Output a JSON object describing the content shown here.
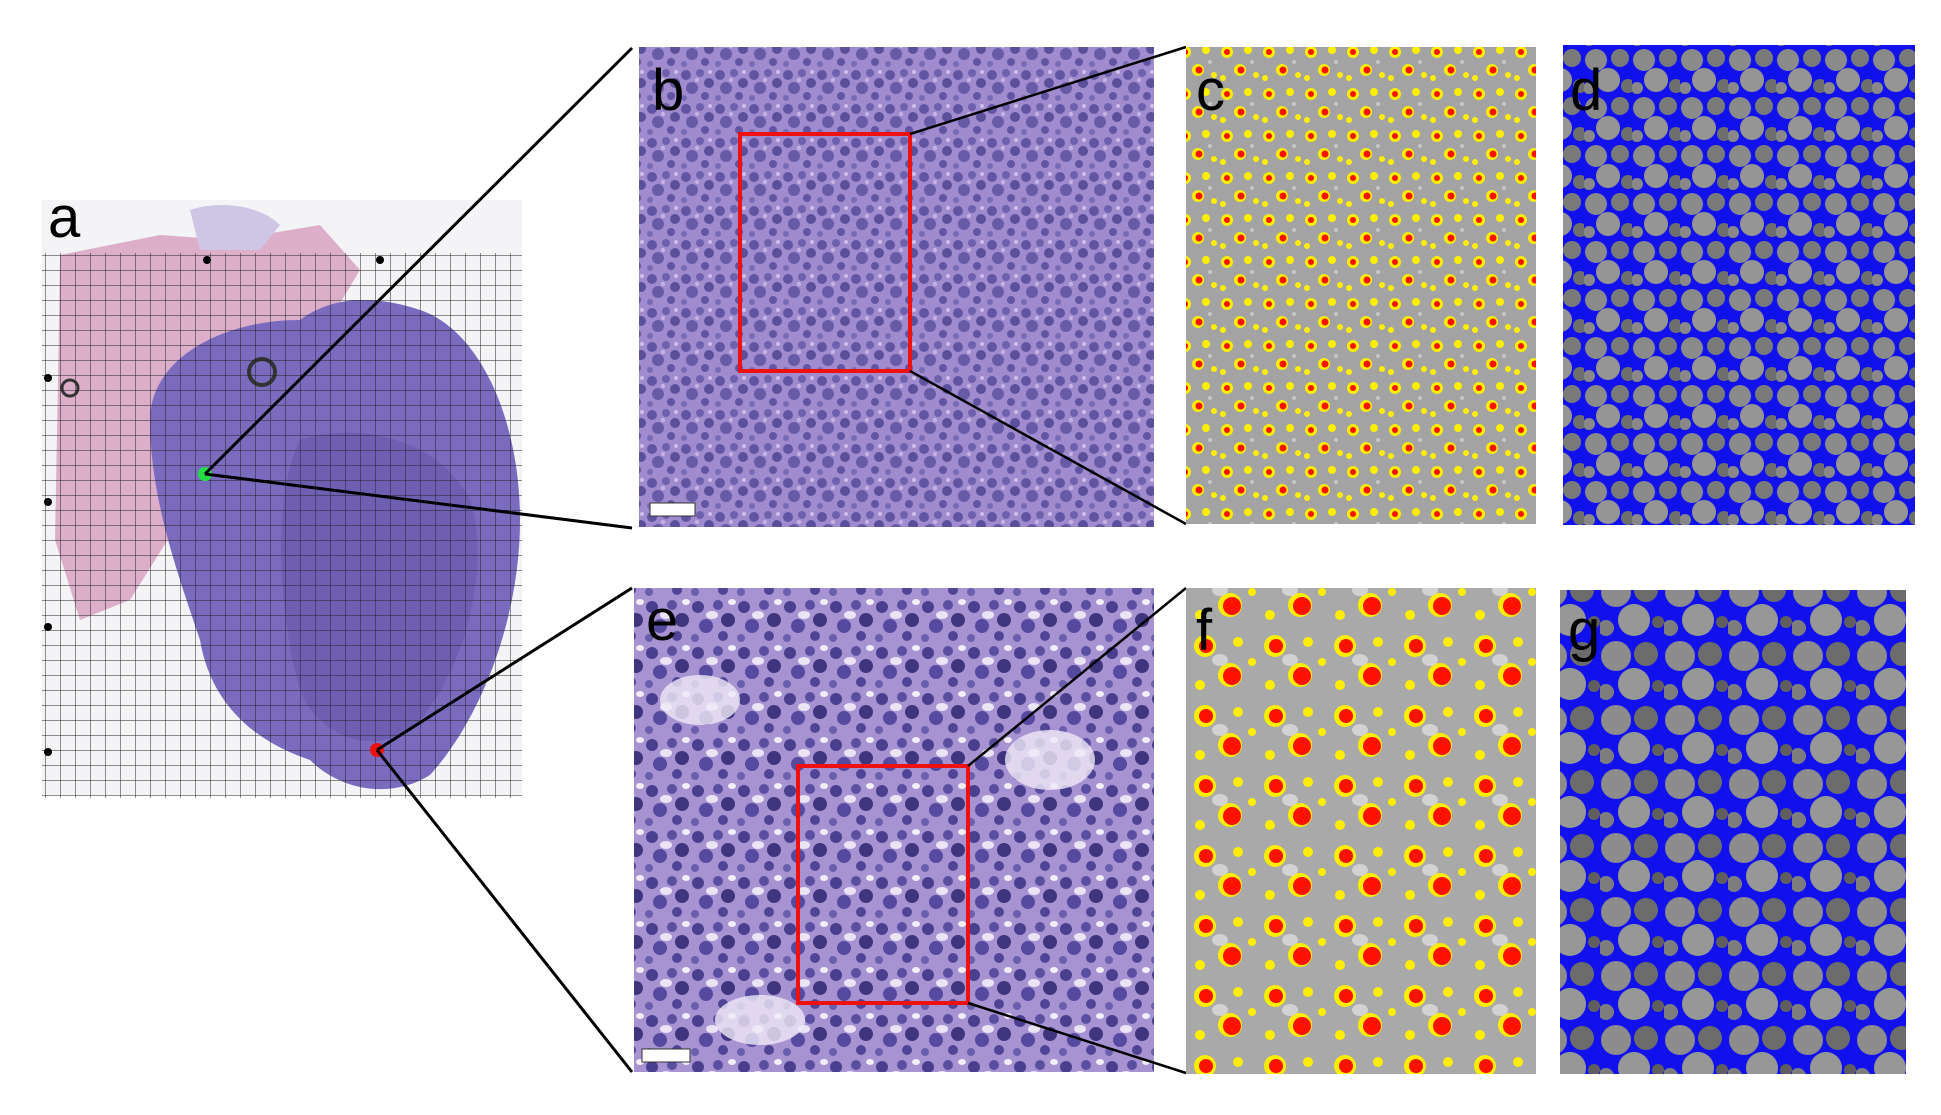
{
  "panels": {
    "a": {
      "label": "a"
    },
    "b": {
      "label": "b"
    },
    "c": {
      "label": "c"
    },
    "d": {
      "label": "d"
    },
    "e": {
      "label": "e"
    },
    "f": {
      "label": "f"
    },
    "g": {
      "label": "g"
    }
  },
  "colors": {
    "he_stain": "#8e78c4",
    "nuclei": "#4a3f8e",
    "roi_box": "#ee1111",
    "marker_top": "#22dd44",
    "marker_bottom": "#ee1111",
    "seg_yellow": "#ffee00",
    "seg_red": "#ff1100",
    "background_blue": "#1111ee",
    "grayscale": "#9a9a9a"
  }
}
